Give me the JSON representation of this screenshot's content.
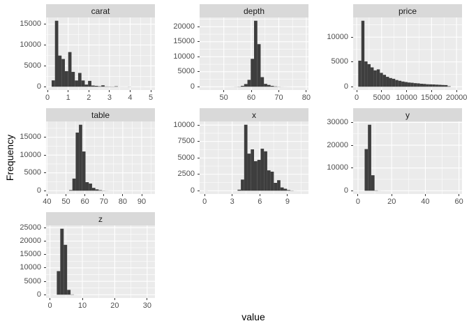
{
  "figure": {
    "xlabel": "value",
    "ylabel": "Frequency",
    "facet_titles": [
      "carat",
      "depth",
      "price",
      "table",
      "x",
      "y",
      "z"
    ]
  },
  "colors": {
    "background": "#FFFFFF",
    "bar_fill": "#3E3E3E",
    "panel_bg": "#EBEBEB",
    "strip_bg": "#D9D9D9",
    "grid_major": "#FFFFFF",
    "grid_minor": "#FFFFFF",
    "tick_mark": "#333333",
    "tick_label": "#4D4D4D",
    "strip_text": "#1A1A1A",
    "axis_title": "#000000"
  },
  "chart_data": [
    {
      "name": "carat",
      "type": "bar",
      "subtype": "histogram",
      "bin_start": 0.2,
      "bin_width": 0.1603,
      "values": [
        1520,
        15800,
        7460,
        6640,
        3730,
        8300,
        3550,
        1500,
        3300,
        1500,
        510,
        1400,
        290,
        210,
        110,
        340,
        60,
        50,
        40,
        110,
        12,
        10,
        8,
        30,
        2,
        2,
        2,
        5,
        1,
        1
      ],
      "x_ticks": [
        0,
        1,
        2,
        3,
        4,
        5
      ],
      "y_ticks": [
        0,
        5000,
        10000,
        15000
      ],
      "xlim": [
        -0.07,
        5.2
      ],
      "ylim": [
        -790,
        16590
      ]
    },
    {
      "name": "depth",
      "type": "bar",
      "subtype": "histogram",
      "bin_start": 43,
      "bin_width": 1.2,
      "values": [
        0,
        0,
        0,
        0,
        0,
        2,
        3,
        5,
        10,
        30,
        60,
        300,
        900,
        2300,
        9300,
        22000,
        14200,
        3200,
        950,
        600,
        300,
        120,
        50,
        20,
        10,
        5,
        2,
        1,
        0,
        1
      ],
      "x_ticks": [
        50,
        60,
        70,
        80
      ],
      "y_ticks": [
        0,
        5000,
        10000,
        15000,
        20000
      ],
      "xlim": [
        41.2,
        80.8
      ],
      "ylim": [
        -1100,
        23100
      ]
    },
    {
      "name": "price",
      "type": "bar",
      "subtype": "histogram",
      "bin_start": 326,
      "bin_width": 616.6,
      "values": [
        5250,
        13300,
        5100,
        4550,
        3900,
        3300,
        3500,
        2800,
        2400,
        2000,
        1750,
        1600,
        1350,
        1200,
        1050,
        950,
        850,
        800,
        720,
        680,
        600,
        560,
        500,
        480,
        460,
        420,
        390,
        350,
        330,
        100
      ],
      "x_ticks": [
        0,
        5000,
        10000,
        15000,
        20000
      ],
      "y_ticks": [
        0,
        5000,
        10000
      ],
      "xlim": [
        -700,
        21100
      ],
      "ylim": [
        -665,
        13965
      ]
    },
    {
      "name": "table",
      "type": "bar",
      "subtype": "histogram",
      "bin_start": 43,
      "bin_width": 1.733,
      "values": [
        0,
        0,
        0,
        0,
        1,
        180,
        3400,
        16300,
        18500,
        11000,
        2400,
        2000,
        800,
        380,
        150,
        50,
        20,
        8,
        4,
        2,
        1,
        0,
        0,
        0,
        0,
        0,
        0,
        0,
        0,
        1
      ],
      "x_ticks": [
        40,
        50,
        60,
        70,
        80,
        90
      ],
      "y_ticks": [
        0,
        5000,
        10000,
        15000
      ],
      "xlim": [
        39.5,
        97
      ],
      "ylim": [
        -925,
        19425
      ]
    },
    {
      "name": "x",
      "type": "bar",
      "subtype": "histogram",
      "bin_start": 0,
      "bin_width": 0.358,
      "values": [
        8,
        0,
        0,
        0,
        0,
        0,
        0,
        0,
        0,
        0,
        160,
        1700,
        10050,
        5650,
        6300,
        4500,
        4700,
        6400,
        6000,
        3100,
        2900,
        1200,
        1600,
        500,
        300,
        100,
        30,
        5,
        0,
        2
      ],
      "x_ticks": [
        0,
        3,
        6,
        9
      ],
      "y_ticks": [
        0,
        2500,
        5000,
        7500,
        10000
      ],
      "xlim": [
        -0.54,
        11.28
      ],
      "ylim": [
        -502,
        10553
      ]
    },
    {
      "name": "y",
      "type": "bar",
      "subtype": "histogram",
      "bin_start": 0,
      "bin_width": 1.963,
      "values": [
        7,
        0,
        18300,
        29000,
        6800,
        120,
        20,
        8,
        3,
        2,
        1,
        0,
        0,
        0,
        0,
        0,
        0,
        0,
        0,
        0,
        0,
        0,
        0,
        0,
        0,
        0,
        0,
        0,
        0,
        2
      ],
      "x_ticks": [
        0,
        20,
        40,
        60
      ],
      "y_ticks": [
        0,
        10000,
        20000,
        30000
      ],
      "xlim": [
        -2.9,
        61.8
      ],
      "ylim": [
        -1450,
        30450
      ]
    },
    {
      "name": "z",
      "type": "bar",
      "subtype": "histogram",
      "bin_start": 0,
      "bin_width": 1.06,
      "values": [
        20,
        1,
        8800,
        24600,
        18600,
        1800,
        100,
        10,
        3,
        1,
        0,
        0,
        0,
        0,
        0,
        0,
        0,
        0,
        0,
        0,
        0,
        0,
        0,
        0,
        0,
        0,
        0,
        0,
        0,
        1
      ],
      "x_ticks": [
        0,
        10,
        20,
        30
      ],
      "y_ticks": [
        0,
        5000,
        10000,
        15000,
        20000,
        25000
      ],
      "xlim": [
        -1.2,
        32.4
      ],
      "ylim": [
        -1230,
        25830
      ]
    }
  ]
}
